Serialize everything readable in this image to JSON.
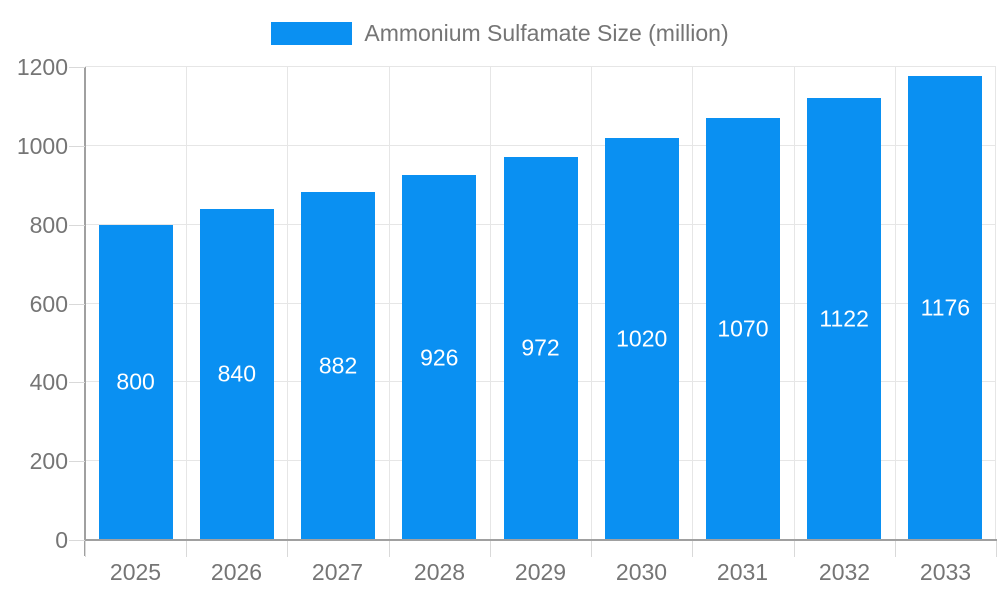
{
  "chart_data": {
    "type": "bar",
    "legend": "Ammonium Sulfamate Size (million)",
    "legend_position": "top-center",
    "categories": [
      "2025",
      "2026",
      "2027",
      "2028",
      "2029",
      "2030",
      "2031",
      "2032",
      "2033"
    ],
    "series": [
      {
        "name": "Ammonium Sulfamate Size (million)",
        "values": [
          800,
          840,
          882,
          926,
          972,
          1020,
          1070,
          1122,
          1176
        ]
      }
    ],
    "xlabel": "",
    "ylabel": "",
    "ylim": [
      0,
      1200
    ],
    "yticks": [
      0,
      200,
      400,
      600,
      800,
      1000,
      1200
    ],
    "grid": true,
    "value_labels_shown": true,
    "colors": {
      "bar": "#0a90f2",
      "bar_value_text": "#ffffff",
      "label_text": "#757575",
      "axis_line": "#a0a0a0",
      "gridline": "#e6e6e6",
      "tick": "#d9d9d9",
      "background": "#ffffff"
    }
  }
}
